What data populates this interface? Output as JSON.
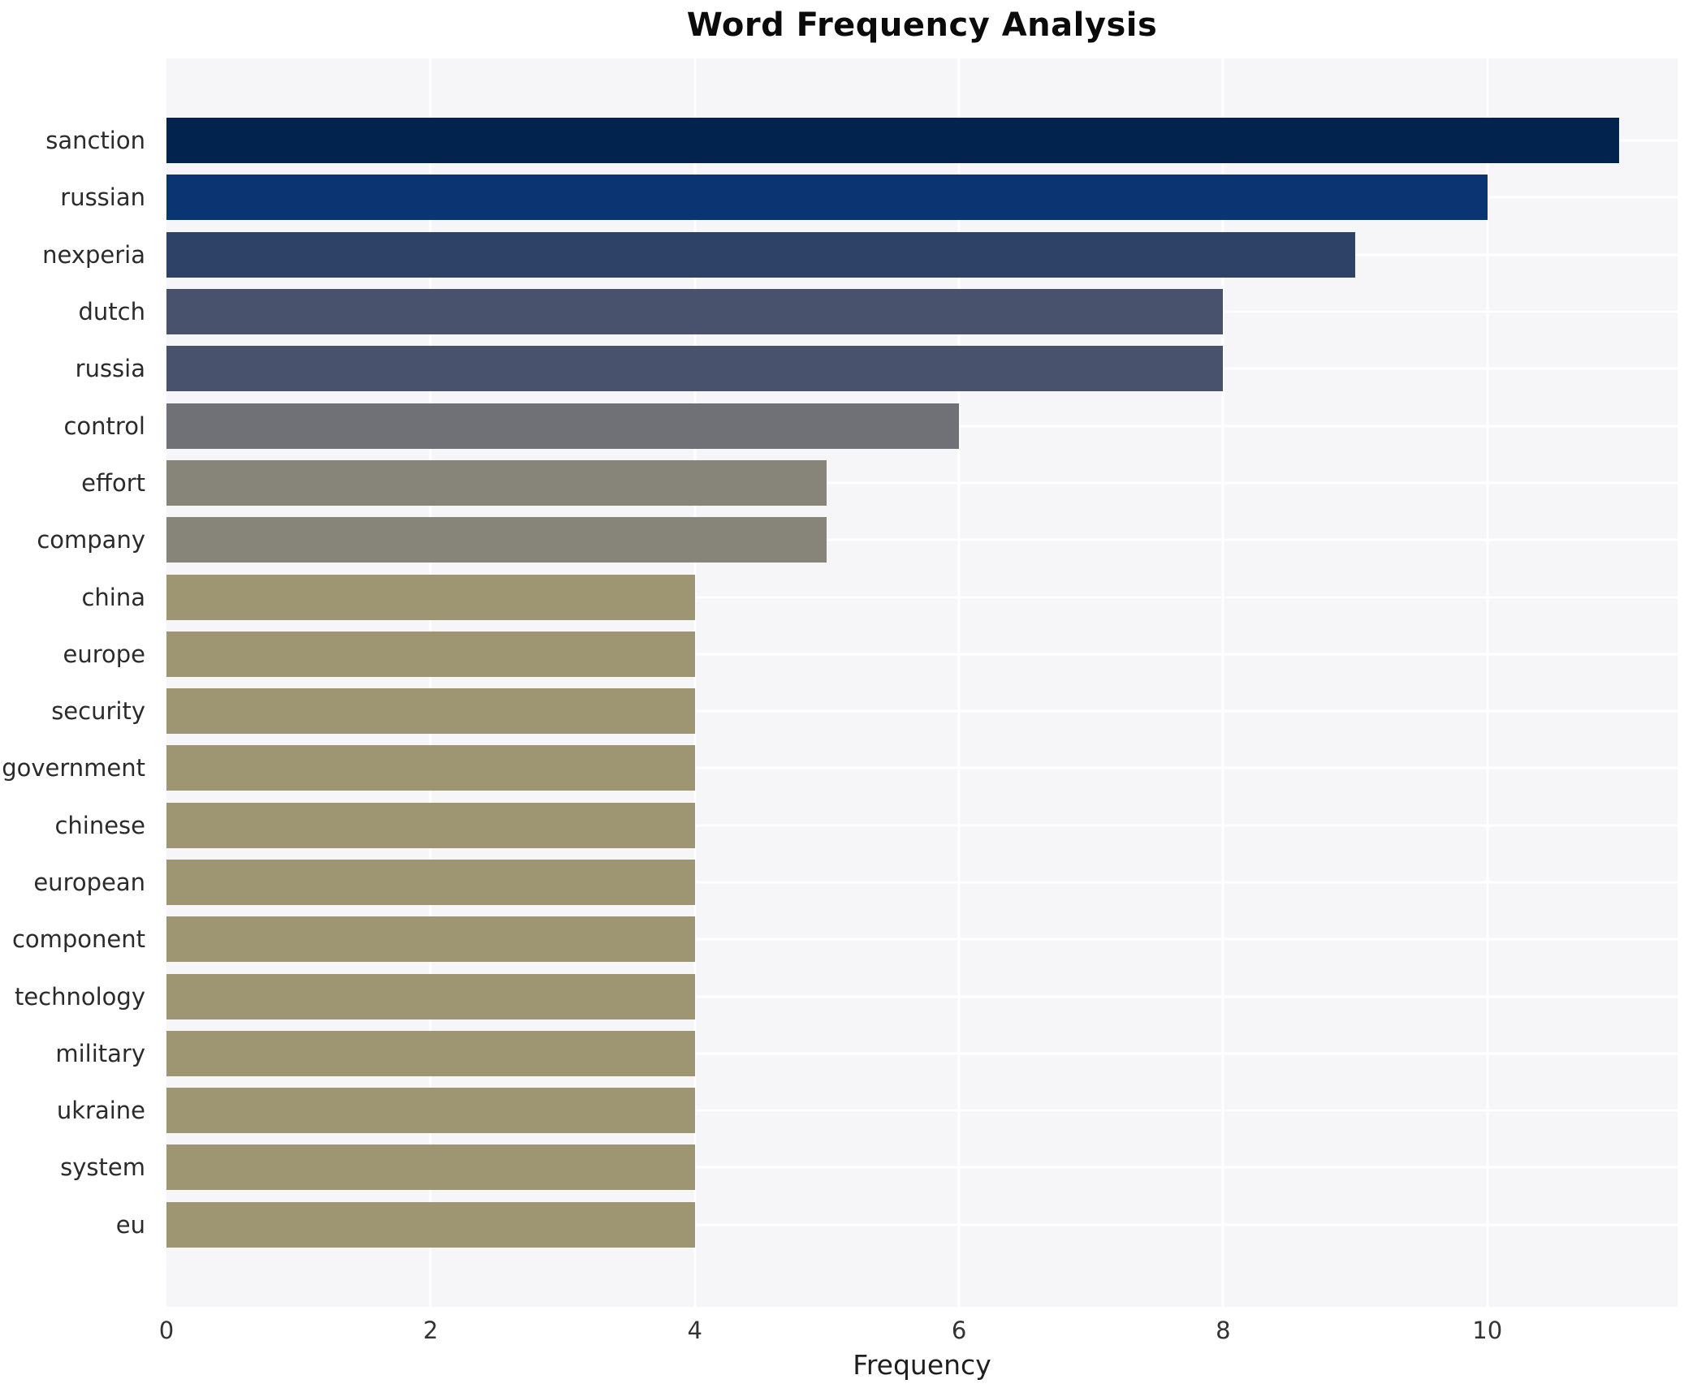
{
  "title": "Word Frequency Analysis",
  "chart_data": {
    "type": "bar",
    "orientation": "horizontal",
    "title": "Word Frequency Analysis",
    "xlabel": "Frequency",
    "ylabel": "",
    "categories": [
      "sanction",
      "russian",
      "nexperia",
      "dutch",
      "russia",
      "control",
      "effort",
      "company",
      "china",
      "europe",
      "security",
      "government",
      "chinese",
      "european",
      "component",
      "technology",
      "military",
      "ukraine",
      "system",
      "eu"
    ],
    "values": [
      11,
      10,
      9,
      8,
      8,
      6,
      5,
      5,
      4,
      4,
      4,
      4,
      4,
      4,
      4,
      4,
      4,
      4,
      4,
      4
    ],
    "bar_colors": [
      "#02234e",
      "#0a3572",
      "#2e4268",
      "#49526d",
      "#49526d",
      "#707176",
      "#87857a",
      "#87857a",
      "#9e9573",
      "#9e9573",
      "#9e9573",
      "#9e9573",
      "#9e9573",
      "#9e9573",
      "#9e9573",
      "#9e9573",
      "#9e9573",
      "#9e9573",
      "#9e9573",
      "#9e9573"
    ],
    "x_ticks": [
      0,
      2,
      4,
      6,
      8,
      10
    ],
    "xlim": [
      0,
      11.44
    ],
    "grid": true,
    "legend": "none",
    "plot_bg_color": "#f6f6f8",
    "grid_color": "#ffffff",
    "label_color": "#2b2b2b",
    "tick_color": "#333333",
    "title_color": "#0b0b0b"
  }
}
